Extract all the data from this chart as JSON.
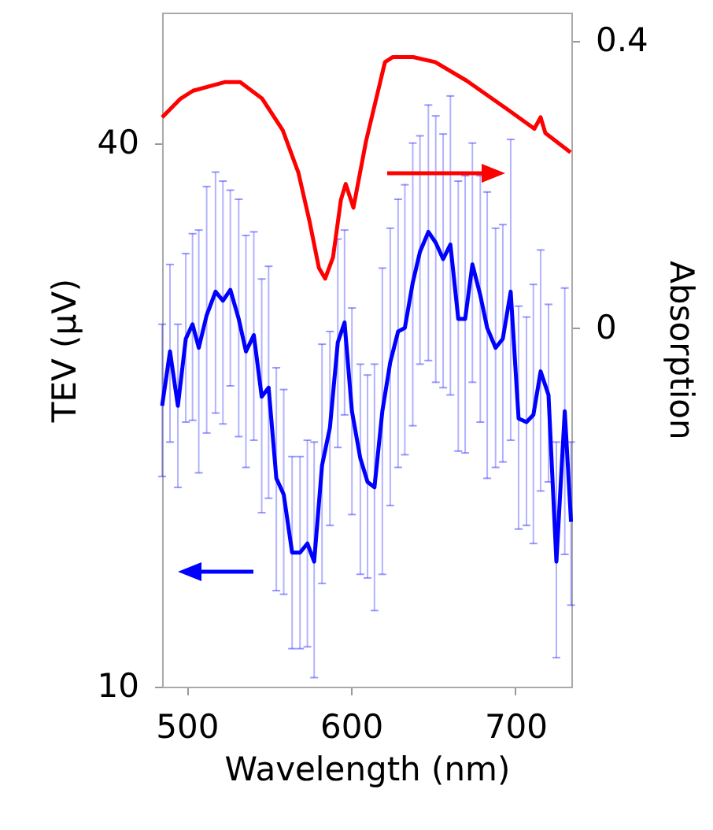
{
  "chart_data": {
    "type": "line",
    "xlabel": "Wavelength (nm)",
    "ylabel": "TEV (μV)",
    "y2label": "Absorption",
    "xlim": [
      485,
      734
    ],
    "xticks": [
      500,
      600,
      700
    ],
    "ylim": [
      10,
      47.2
    ],
    "yticks": [
      10,
      40
    ],
    "y2lim": [
      -0.5,
      0.44
    ],
    "y2ticks": [
      0,
      0.4
    ],
    "grid": false,
    "series": [
      {
        "color": "#ff0000",
        "axis": "y2",
        "x": [
          485,
          496.2,
          503.8,
          523,
          532.5,
          545.9,
          558.4,
          567.9,
          574.6,
          580.4,
          584.2,
          589,
          593.8,
          596.7,
          601.4,
          609.1,
          620.6,
          625.4,
          637.8,
          651.2,
          670.3,
          695.2,
          711.5,
          715.3,
          718.2,
          733.5
        ],
        "values": [
          0.294,
          0.32,
          0.331,
          0.343,
          0.343,
          0.32,
          0.276,
          0.217,
          0.15,
          0.084,
          0.069,
          0.099,
          0.179,
          0.201,
          0.168,
          0.261,
          0.371,
          0.378,
          0.378,
          0.371,
          0.345,
          0.305,
          0.278,
          0.294,
          0.272,
          0.245
        ]
      },
      {
        "color": "#0000ff",
        "x": [
          485,
          489.8,
          494.6,
          499.4,
          503.5,
          507.3,
          512.1,
          517.5,
          522,
          526.5,
          531.6,
          536,
          540.8,
          545.6,
          549.8,
          554.5,
          559,
          564.1,
          568.9,
          573.4,
          577.5,
          582.3,
          587.1,
          591.9,
          596,
          600.5,
          605.6,
          610,
          614.2,
          619,
          623.8,
          628.6,
          632.7,
          637.5,
          641.9,
          647,
          651.5,
          656,
          660.4,
          665.2,
          669.4,
          673.8,
          678.6,
          682.8,
          687.9,
          692.3,
          697.1,
          701.9,
          706.7,
          710.9,
          715.3,
          720.1,
          724.9,
          730,
          733.8
        ],
        "values": [
          25.5,
          28.5,
          25.5,
          29.2,
          30,
          28.7,
          30.5,
          31.8,
          31.3,
          31.9,
          30.3,
          28.5,
          29.4,
          26,
          26.5,
          21.5,
          20.6,
          17.4,
          17.4,
          17.9,
          16.9,
          22.2,
          24.3,
          29,
          30.1,
          25.2,
          22.6,
          21.3,
          21,
          25.2,
          27.9,
          29.6,
          29.8,
          32.3,
          34,
          35.1,
          34.5,
          33.6,
          34.4,
          30.3,
          30.3,
          33.3,
          31.6,
          29.8,
          28.7,
          29.2,
          31.8,
          24.8,
          24.6,
          25,
          27.4,
          26.1,
          16.9,
          25.2,
          19.1
        ],
        "errors": [
          [
            21.6,
            30
          ],
          [
            23.5,
            33.3
          ],
          [
            21,
            30
          ],
          [
            24.6,
            33.9
          ],
          [
            24.7,
            35
          ],
          [
            21.8,
            35.2
          ],
          [
            24,
            37.6
          ],
          [
            25.1,
            38.4
          ],
          [
            24.5,
            37.9
          ],
          [
            26.6,
            37.4
          ],
          [
            23.8,
            36.9
          ],
          [
            22.1,
            34.9
          ],
          [
            23.6,
            35.1
          ],
          [
            19.6,
            32.5
          ],
          [
            20.4,
            33.2
          ],
          [
            15.3,
            27.6
          ],
          [
            15.1,
            26.4
          ],
          [
            12.1,
            22.7
          ],
          [
            12.1,
            22.7
          ],
          [
            12.2,
            23.6
          ],
          [
            10.5,
            23.5
          ],
          [
            15.7,
            28.9
          ],
          [
            18.9,
            29.6
          ],
          [
            23.2,
            34.7
          ],
          [
            25,
            35.2
          ],
          [
            19.5,
            30.9
          ],
          [
            16.2,
            27.8
          ],
          [
            16,
            27.2
          ],
          [
            14.2,
            27.8
          ],
          [
            16.2,
            33.1
          ],
          [
            20,
            35.3
          ],
          [
            22.1,
            36.9
          ],
          [
            22.8,
            37.7
          ],
          [
            24.4,
            40
          ],
          [
            27.8,
            40.4
          ],
          [
            28,
            42.1
          ],
          [
            26.8,
            41.5
          ],
          [
            26.5,
            40.5
          ],
          [
            26.1,
            42.6
          ],
          [
            23,
            37.9
          ],
          [
            22.9,
            38.2
          ],
          [
            26.8,
            40
          ],
          [
            24.6,
            38.2
          ],
          [
            21.5,
            37.3
          ],
          [
            22.1,
            35.3
          ],
          [
            22.4,
            35.5
          ],
          [
            23.6,
            40.2
          ],
          [
            18.7,
            31
          ],
          [
            18.9,
            30.4
          ],
          [
            17.9,
            32.2
          ],
          [
            20.8,
            34.1
          ],
          [
            21.3,
            31.1
          ],
          [
            11.6,
            23.5
          ],
          [
            17.3,
            32
          ],
          [
            14.5,
            23.5
          ]
        ]
      }
    ]
  }
}
